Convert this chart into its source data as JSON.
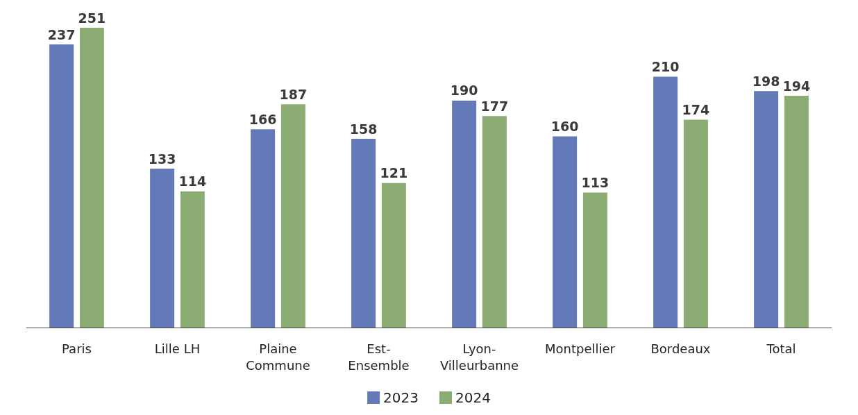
{
  "chart_data": {
    "type": "bar",
    "categories": [
      "Paris",
      "Lille LH",
      "Plaine Commune",
      "Est-Ensemble",
      "Lyon-Villeurbanne",
      "Montpellier",
      "Bordeaux",
      "Total"
    ],
    "series": [
      {
        "name": "2023",
        "color": "#6479b7",
        "values": [
          237,
          133,
          166,
          158,
          190,
          160,
          210,
          198
        ]
      },
      {
        "name": "2024",
        "color": "#8bac73",
        "values": [
          251,
          114,
          187,
          121,
          177,
          113,
          174,
          194
        ]
      }
    ],
    "data_labels": true,
    "legend": "bottom"
  }
}
